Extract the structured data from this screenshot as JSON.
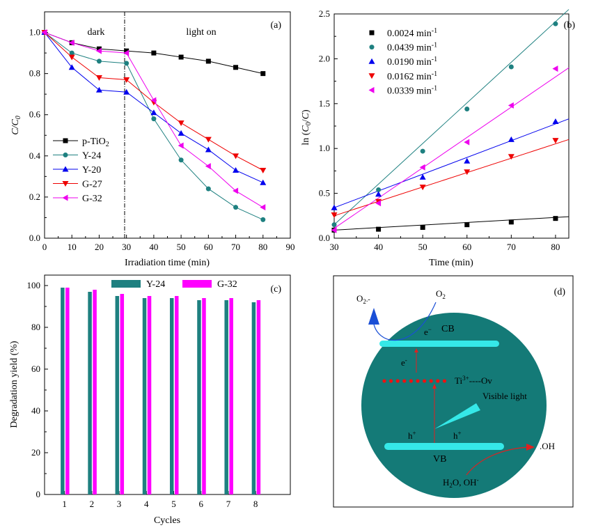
{
  "chart_data": [
    {
      "panel_label": "(a)",
      "type": "line",
      "xlabel": "Irradiation  time (min)",
      "ylabel": "C/C",
      "ylabel_sub": "0",
      "xlim": [
        0,
        90
      ],
      "ylim": [
        0,
        1.1
      ],
      "xticks": [
        "0",
        "10",
        "20",
        "30",
        "40",
        "50",
        "60",
        "70",
        "80",
        "90"
      ],
      "yticks": [
        "0.0",
        "0.2",
        "0.4",
        "0.6",
        "0.8",
        "1.0"
      ],
      "region_labels": [
        "dark",
        "light on"
      ],
      "x": [
        0,
        10,
        20,
        30,
        40,
        50,
        60,
        70,
        80
      ],
      "series": [
        {
          "name": "p-TiO",
          "name_sub": "2",
          "color": "#000000",
          "marker": "square",
          "values": [
            1.0,
            0.95,
            0.92,
            0.91,
            0.9,
            0.88,
            0.86,
            0.83,
            0.8
          ]
        },
        {
          "name": "Y-24",
          "color": "#1e8080",
          "marker": "circle",
          "values": [
            1.0,
            0.9,
            0.86,
            0.85,
            0.58,
            0.38,
            0.24,
            0.15,
            0.09
          ]
        },
        {
          "name": "Y-20",
          "color": "#0000ee",
          "marker": "triangle-up",
          "values": [
            1.0,
            0.83,
            0.72,
            0.71,
            0.61,
            0.51,
            0.43,
            0.33,
            0.27
          ]
        },
        {
          "name": "G-27",
          "color": "#ee0000",
          "marker": "triangle-down",
          "values": [
            1.0,
            0.88,
            0.78,
            0.77,
            0.66,
            0.56,
            0.48,
            0.4,
            0.33
          ]
        },
        {
          "name": "G-32",
          "color": "#ee00ee",
          "marker": "triangle-left",
          "values": [
            1.0,
            0.95,
            0.91,
            0.9,
            0.67,
            0.45,
            0.35,
            0.23,
            0.15
          ]
        }
      ]
    },
    {
      "panel_label": "(b)",
      "type": "scatter",
      "xlabel": "Time (min)",
      "ylabel_parts": [
        "ln (",
        "C",
        "0",
        "/",
        "C",
        ")"
      ],
      "xlim": [
        30,
        83
      ],
      "ylim": [
        0,
        2.5
      ],
      "xticks": [
        "30",
        "40",
        "50",
        "60",
        "70",
        "80"
      ],
      "yticks": [
        "0.0",
        "0.5",
        "1.0",
        "1.5",
        "2.0",
        "2.5"
      ],
      "x": [
        30,
        40,
        50,
        60,
        70,
        80
      ],
      "series": [
        {
          "name": "0.0024 min",
          "unit_sup": "-1",
          "color": "#000000",
          "marker": "square",
          "values": [
            0.09,
            0.1,
            0.12,
            0.15,
            0.18,
            0.22
          ],
          "fit": [
            0.09,
            0.24
          ]
        },
        {
          "name": "0.0439 min",
          "unit_sup": "-1",
          "color": "#1e8080",
          "marker": "circle",
          "values": [
            0.15,
            0.54,
            0.97,
            1.44,
            1.91,
            2.39
          ],
          "fit": [
            0.15,
            2.55
          ]
        },
        {
          "name": "0.0190 min",
          "unit_sup": "-1",
          "color": "#0000ee",
          "marker": "triangle-up",
          "values": [
            0.34,
            0.49,
            0.68,
            0.86,
            1.1,
            1.3
          ],
          "fit": [
            0.34,
            1.33
          ]
        },
        {
          "name": "0.0162 min",
          "unit_sup": "-1",
          "color": "#ee0000",
          "marker": "triangle-down",
          "values": [
            0.26,
            0.41,
            0.57,
            0.74,
            0.91,
            1.09
          ],
          "fit": [
            0.25,
            1.1
          ]
        },
        {
          "name": "0.0339 min",
          "unit_sup": "-1",
          "color": "#ee00ee",
          "marker": "triangle-left",
          "values": [
            0.09,
            0.39,
            0.79,
            1.07,
            1.48,
            1.89
          ],
          "fit": [
            0.11,
            1.9
          ]
        }
      ]
    },
    {
      "panel_label": "(c)",
      "type": "bar",
      "xlabel": "Cycles",
      "ylabel": "Degradation yield (%)",
      "ylim": [
        0,
        105
      ],
      "yticks": [
        "0",
        "20",
        "40",
        "60",
        "80",
        "100"
      ],
      "categories": [
        "1",
        "2",
        "3",
        "4",
        "5",
        "6",
        "7",
        "8"
      ],
      "series": [
        {
          "name": "Y-24",
          "color": "#1e8080",
          "values": [
            99,
            97,
            95,
            94,
            94,
            93,
            93,
            92
          ]
        },
        {
          "name": "G-32",
          "color": "#ff00ff",
          "values": [
            99,
            98,
            96,
            95,
            95,
            94,
            94,
            93
          ]
        }
      ]
    }
  ],
  "schematic": {
    "panel_label": "(d)",
    "cb_label": "CB",
    "vb_label": "VB",
    "o2": "O",
    "o2_sub": "2",
    "superoxide": "O",
    "superoxide_sub": "2",
    "superoxide_sup": ".-",
    "electron_top": "e",
    "electron_top_sup": "−",
    "electron_mid": "e",
    "electron_mid_sup": "-",
    "ti_label": "Ti",
    "ti_sup": "3+",
    "ov_label": "----Ov",
    "visible_light": "Visible light",
    "hole_left": "h",
    "hole_right": "h",
    "hole_sup": "+",
    "oh_label": ".OH",
    "water_label": "H",
    "water_sub": "2",
    "water_rest": "O, OH",
    "water_sup": "-",
    "colors": {
      "sphere": "#147a77",
      "band": "#35e8e8",
      "trap": "#ee1111",
      "arrow_blue": "#1a4fd6",
      "arrow_red": "#e02020"
    }
  }
}
